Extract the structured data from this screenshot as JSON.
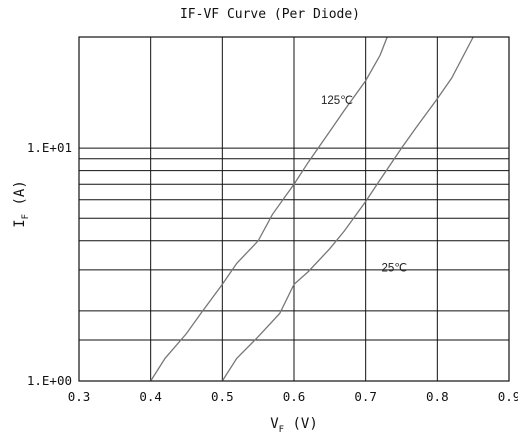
{
  "chart_data": {
    "type": "line",
    "title": "IF-VF Curve (Per Diode)",
    "xlabel": {
      "main": "V",
      "sub": "F",
      "unit": " (V)"
    },
    "ylabel": {
      "main": "I",
      "sub": "F",
      "unit": " (A)"
    },
    "xlim": [
      0.3,
      0.9
    ],
    "ylim": [
      1,
      30
    ],
    "yscale": "log",
    "x_ticks": [
      "0.3",
      "0.4",
      "0.5",
      "0.6",
      "0.7",
      "0.8",
      "0.9"
    ],
    "y_ticks": [
      {
        "value": 1,
        "label": "1.E+00"
      },
      {
        "value": 10,
        "label": "1.E+01"
      }
    ],
    "y_grid": [
      1.5,
      2,
      3,
      4,
      5,
      6,
      7,
      8,
      9,
      10
    ],
    "grid": true,
    "colors": {
      "curve": "#777777",
      "grid": "#111111",
      "frame": "#111111"
    },
    "series": [
      {
        "name": "125℃",
        "x": [
          0.4,
          0.42,
          0.45,
          0.47,
          0.5,
          0.52,
          0.55,
          0.57,
          0.6,
          0.62,
          0.65,
          0.67,
          0.7,
          0.72,
          0.73
        ],
        "y": [
          1.0,
          1.25,
          1.6,
          1.95,
          2.6,
          3.2,
          4.0,
          5.2,
          7.0,
          8.7,
          11.8,
          14.5,
          19.5,
          25.0,
          30.0
        ]
      },
      {
        "name": "25℃",
        "x": [
          0.5,
          0.52,
          0.55,
          0.58,
          0.6,
          0.62,
          0.65,
          0.67,
          0.7,
          0.72,
          0.75,
          0.77,
          0.8,
          0.82,
          0.85
        ],
        "y": [
          1.0,
          1.25,
          1.55,
          1.95,
          2.6,
          2.95,
          3.7,
          4.4,
          5.9,
          7.3,
          10.0,
          12.2,
          16.3,
          20.0,
          30.0
        ]
      }
    ],
    "annotations": [
      {
        "text": "125℃",
        "x": 0.66,
        "y": 15.5
      },
      {
        "text": "25℃",
        "x": 0.74,
        "y": 2.95
      }
    ]
  }
}
